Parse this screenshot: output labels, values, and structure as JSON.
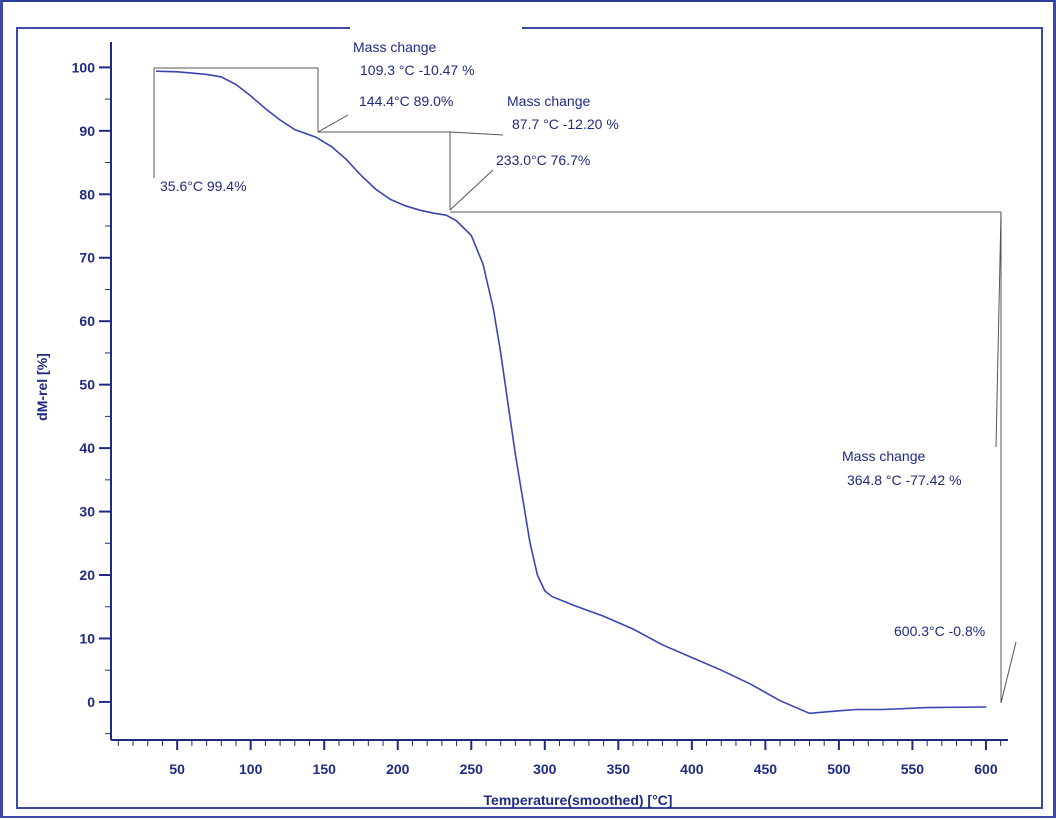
{
  "colors": {
    "frame": "#3b4aa8",
    "axis": "#1f2a82",
    "curve": "#3a46b0",
    "annotation_line": "#555555",
    "text": "#1f2a82"
  },
  "chart_data": {
    "type": "line",
    "title": "",
    "xlabel": "Temperature(smoothed)  [°C]",
    "ylabel": "dM-rel  [%]",
    "xlim": [
      5,
      615
    ],
    "ylim": [
      -6,
      104
    ],
    "grid": false,
    "legend": "none",
    "x_ticks": [
      "50",
      "100",
      "150",
      "200",
      "250",
      "300",
      "350",
      "400",
      "450",
      "500",
      "550",
      "600"
    ],
    "y_ticks": [
      "0",
      "10",
      "20",
      "30",
      "40",
      "50",
      "60",
      "70",
      "80",
      "90",
      "100"
    ],
    "series": [
      {
        "x": [
          35.6,
          50,
          60,
          70,
          80,
          90,
          100,
          110,
          120,
          130,
          144.4,
          155,
          165,
          175,
          185,
          195,
          205,
          215,
          225,
          233,
          240,
          250,
          258,
          265,
          270,
          275,
          280,
          285,
          290,
          295,
          300,
          305,
          320,
          340,
          360,
          380,
          400,
          420,
          440,
          460,
          480,
          500,
          512,
          530,
          560,
          600.3
        ],
        "y": [
          99.4,
          99.3,
          99.1,
          98.9,
          98.5,
          97.3,
          95.5,
          93.5,
          91.7,
          90.2,
          89.0,
          87.5,
          85.5,
          83.0,
          80.8,
          79.2,
          78.2,
          77.5,
          77.0,
          76.7,
          75.8,
          73.5,
          69.0,
          62.0,
          55.0,
          47.0,
          39.0,
          32.0,
          25.0,
          20.0,
          17.5,
          16.6,
          15.2,
          13.5,
          11.5,
          9.0,
          7.0,
          5.0,
          2.8,
          0.2,
          -1.8,
          -1.4,
          -1.2,
          -1.2,
          -0.9,
          -0.8
        ]
      }
    ],
    "annotations": [
      {
        "heading": "Mass change",
        "values": "109.3 °C  -10.47 %"
      },
      {
        "heading": "Mass change",
        "values": "87.7 °C  -12.20 %"
      },
      {
        "heading": "Mass change",
        "values": "364.8 °C  -77.42 %"
      },
      {
        "point": "35.6°C  99.4%"
      },
      {
        "point": "144.4°C  89.0%"
      },
      {
        "point": "233.0°C  76.7%"
      },
      {
        "point": "600.3°C  -0.8%"
      }
    ]
  }
}
